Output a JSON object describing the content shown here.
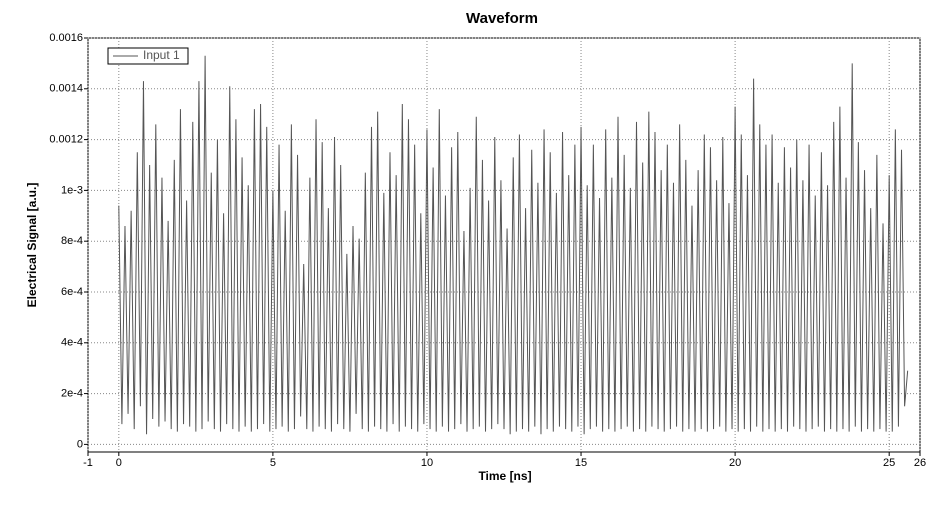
{
  "chart_data": {
    "type": "line",
    "title": "Waveform",
    "x_label": "Time [ns]",
    "y_label": "Electrical Signal [a.u.]",
    "x": [
      0,
      0.1,
      0.2,
      0.3,
      0.4,
      0.5,
      0.6,
      0.7,
      0.8,
      0.9,
      1,
      1.1,
      1.2,
      1.3,
      1.4,
      1.5,
      1.6,
      1.7,
      1.8,
      1.9,
      2,
      2.1,
      2.2,
      2.3,
      2.4,
      2.5,
      2.6,
      2.7,
      2.8,
      2.9,
      3,
      3.1,
      3.2,
      3.3,
      3.4,
      3.5,
      3.6,
      3.7,
      3.8,
      3.9,
      4,
      4.1,
      4.2,
      4.3,
      4.4,
      4.5,
      4.6,
      4.7,
      4.8,
      4.9,
      5,
      5.1,
      5.2,
      5.3,
      5.4,
      5.5,
      5.6,
      5.7,
      5.8,
      5.9,
      6,
      6.1,
      6.2,
      6.3,
      6.4,
      6.5,
      6.6,
      6.7,
      6.8,
      6.9,
      7,
      7.1,
      7.2,
      7.3,
      7.4,
      7.5,
      7.6,
      7.7,
      7.8,
      7.9,
      8,
      8.1,
      8.2,
      8.3,
      8.4,
      8.5,
      8.6,
      8.7,
      8.8,
      8.9,
      9,
      9.1,
      9.2,
      9.3,
      9.4,
      9.5,
      9.6,
      9.7,
      9.8,
      9.9,
      10,
      10.1,
      10.2,
      10.3,
      10.4,
      10.5,
      10.6,
      10.7,
      10.8,
      10.9,
      11,
      11.1,
      11.2,
      11.3,
      11.4,
      11.5,
      11.6,
      11.7,
      11.8,
      11.9,
      12,
      12.1,
      12.2,
      12.3,
      12.4,
      12.5,
      12.6,
      12.7,
      12.8,
      12.9,
      13,
      13.1,
      13.2,
      13.3,
      13.4,
      13.5,
      13.6,
      13.7,
      13.8,
      13.9,
      14,
      14.1,
      14.2,
      14.3,
      14.4,
      14.5,
      14.6,
      14.7,
      14.8,
      14.9,
      15,
      15.1,
      15.2,
      15.3,
      15.4,
      15.5,
      15.6,
      15.7,
      15.8,
      15.9,
      16,
      16.1,
      16.2,
      16.3,
      16.4,
      16.5,
      16.6,
      16.7,
      16.8,
      16.9,
      17,
      17.1,
      17.2,
      17.3,
      17.4,
      17.5,
      17.6,
      17.7,
      17.8,
      17.9,
      18,
      18.1,
      18.2,
      18.3,
      18.4,
      18.5,
      18.6,
      18.7,
      18.8,
      18.9,
      19,
      19.1,
      19.2,
      19.3,
      19.4,
      19.5,
      19.6,
      19.7,
      19.8,
      19.9,
      20,
      20.1,
      20.2,
      20.3,
      20.4,
      20.5,
      20.6,
      20.7,
      20.8,
      20.9,
      21,
      21.1,
      21.2,
      21.3,
      21.4,
      21.5,
      21.6,
      21.7,
      21.8,
      21.9,
      22,
      22.1,
      22.2,
      22.3,
      22.4,
      22.5,
      22.6,
      22.7,
      22.8,
      22.9,
      23,
      23.1,
      23.2,
      23.3,
      23.4,
      23.5,
      23.6,
      23.7,
      23.8,
      23.9,
      24,
      24.1,
      24.2,
      24.3,
      24.4,
      24.5,
      24.6,
      24.7,
      24.8,
      24.9,
      25,
      25.1,
      25.2,
      25.3,
      25.4,
      25.5,
      25.6
    ],
    "series": [
      {
        "name": "Input 1",
        "color": "#555555",
        "values": [
          0.00094,
          8e-05,
          0.00086,
          0.00012,
          0.00092,
          6e-05,
          0.00115,
          0.00015,
          0.00143,
          4e-05,
          0.0011,
          0.0001,
          0.00126,
          7e-05,
          0.00105,
          9e-05,
          0.00088,
          6e-05,
          0.00112,
          5e-05,
          0.00132,
          8e-05,
          0.00096,
          7e-05,
          0.00127,
          5e-05,
          0.00143,
          6e-05,
          0.00153,
          9e-05,
          0.00107,
          6e-05,
          0.0012,
          5e-05,
          0.00091,
          8e-05,
          0.00141,
          6e-05,
          0.00128,
          5e-05,
          0.00113,
          7e-05,
          0.00102,
          5e-05,
          0.00132,
          6e-05,
          0.00134,
          8e-05,
          0.00125,
          5e-05,
          0.001,
          6e-05,
          0.00118,
          7e-05,
          0.00092,
          5e-05,
          0.00126,
          6e-05,
          0.00114,
          0.00011,
          0.00071,
          6e-05,
          0.00105,
          5e-05,
          0.00128,
          7e-05,
          0.00119,
          6e-05,
          0.00093,
          5e-05,
          0.00121,
          8e-05,
          0.0011,
          6e-05,
          0.00075,
          5e-05,
          0.00086,
          0.00012,
          0.00081,
          6e-05,
          0.00107,
          5e-05,
          0.00125,
          7e-05,
          0.00131,
          6e-05,
          0.00099,
          5e-05,
          0.00115,
          8e-05,
          0.00106,
          5e-05,
          0.00134,
          7e-05,
          0.00128,
          6e-05,
          0.00118,
          5e-05,
          0.00091,
          8e-05,
          0.00124,
          6e-05,
          0.00109,
          5e-05,
          0.00132,
          7e-05,
          0.00098,
          5e-05,
          0.00117,
          6e-05,
          0.00123,
          8e-05,
          0.00084,
          5e-05,
          0.00101,
          6e-05,
          0.00129,
          7e-05,
          0.00112,
          5e-05,
          0.00096,
          6e-05,
          0.00121,
          8e-05,
          0.00104,
          6e-05,
          0.00085,
          4e-05,
          0.00113,
          5e-05,
          0.00122,
          6e-05,
          0.00093,
          5e-05,
          0.00116,
          7e-05,
          0.00103,
          4e-05,
          0.00124,
          6e-05,
          0.00115,
          5e-05,
          0.00099,
          7e-05,
          0.00123,
          6e-05,
          0.00106,
          5e-05,
          0.00118,
          7e-05,
          0.00125,
          4e-05,
          0.00102,
          6e-05,
          0.00118,
          7e-05,
          0.00097,
          5e-05,
          0.00124,
          6e-05,
          0.00105,
          5e-05,
          0.00129,
          6e-05,
          0.00114,
          7e-05,
          0.00101,
          5e-05,
          0.00127,
          6e-05,
          0.00111,
          5e-05,
          0.00131,
          7e-05,
          0.00123,
          6e-05,
          0.00108,
          5e-05,
          0.00118,
          6e-05,
          0.00103,
          7e-05,
          0.00126,
          5e-05,
          0.00112,
          6e-05,
          0.00094,
          5e-05,
          0.00108,
          6e-05,
          0.00122,
          5e-05,
          0.00117,
          6e-05,
          0.00104,
          7e-05,
          0.00121,
          5e-05,
          0.00095,
          6e-05,
          0.00133,
          5e-05,
          0.00122,
          6e-05,
          0.00106,
          5e-05,
          0.00144,
          7e-05,
          0.00126,
          5e-05,
          0.00118,
          6e-05,
          0.00122,
          5e-05,
          0.00103,
          6e-05,
          0.00117,
          5e-05,
          0.00109,
          7e-05,
          0.0012,
          6e-05,
          0.00104,
          5e-05,
          0.00118,
          6e-05,
          0.00098,
          7e-05,
          0.00115,
          5e-05,
          0.00102,
          6e-05,
          0.00127,
          5e-05,
          0.00133,
          6e-05,
          0.00105,
          5e-05,
          0.0015,
          7e-05,
          0.00119,
          5e-05,
          0.00108,
          6e-05,
          0.00093,
          5e-05,
          0.00114,
          6e-05,
          0.00087,
          5e-05,
          0.00106,
          5e-05,
          0.00124,
          7e-05,
          0.00116,
          0.00015,
          0.00029
        ]
      }
    ],
    "xlim": [
      -1,
      26
    ],
    "xticks": [
      -1,
      0,
      5,
      10,
      15,
      20,
      25,
      26
    ],
    "ylim": [
      -3e-05,
      0.0016
    ],
    "yticks": [
      0,
      {
        "value": 0.0002,
        "label": "2e-4"
      },
      {
        "value": 0.0004,
        "label": "4e-4"
      },
      {
        "value": 0.0006,
        "label": "6e-4"
      },
      {
        "value": 0.0008,
        "label": "8e-4"
      },
      {
        "value": 0.001,
        "label": "1e-3"
      },
      0.0012,
      0.0014,
      0.0016
    ],
    "grid": true,
    "legend": "upper-left"
  }
}
